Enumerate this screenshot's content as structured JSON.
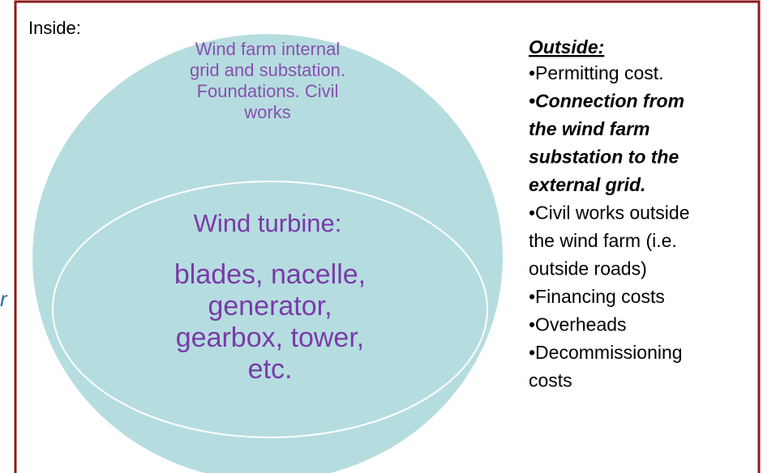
{
  "inside": {
    "label": "Inside:",
    "outer_lines": [
      "Wind farm internal",
      "grid and substation.",
      "Foundations. Civil",
      "works"
    ],
    "inner_title": "Wind turbine:",
    "inner_lines": [
      "blades, nacelle,",
      "generator,",
      "gearbox, tower,",
      "etc."
    ]
  },
  "outside": {
    "title": "Outside:",
    "items": [
      {
        "lines": [
          "•Permitting cost."
        ]
      },
      {
        "lines": [
          "•Connection from",
          "the wind farm",
          "substation to the",
          "external grid."
        ],
        "style": "bold-italic"
      },
      {
        "lines": [
          "•Civil works outside",
          "the wind farm (i.e.",
          "outside roads)"
        ]
      },
      {
        "lines": [
          "•Financing costs"
        ]
      },
      {
        "lines": [
          "•Overheads"
        ]
      },
      {
        "lines": [
          "•Decommissioning",
          "costs"
        ]
      }
    ]
  },
  "margin_fragment": "r"
}
